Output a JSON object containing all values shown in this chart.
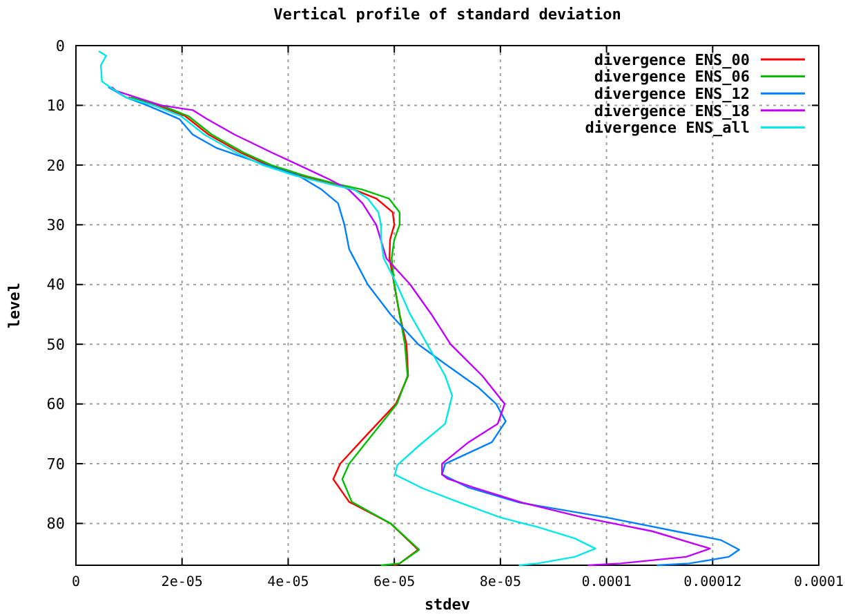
{
  "chart_data": {
    "type": "line",
    "title": "Vertical profile of standard deviation",
    "xlabel": "stdev",
    "ylabel": "level",
    "xlim": [
      0,
      0.00014
    ],
    "xticks": [
      0,
      {
        "value": 2e-05,
        "label": "2e-05"
      },
      {
        "value": 4e-05,
        "label": "4e-05"
      },
      {
        "value": 6e-05,
        "label": "6e-05"
      },
      {
        "value": 8e-05,
        "label": "8e-05"
      },
      {
        "value": 0.0001,
        "label": "0.0001"
      },
      {
        "value": 0.00012,
        "label": "0.00012"
      },
      {
        "value": 0.00014,
        "label": "0.0001"
      }
    ],
    "ylim": [
      87,
      0
    ],
    "yticks": [
      0,
      10,
      20,
      30,
      40,
      50,
      60,
      70,
      80
    ],
    "grid": true,
    "legend": "top right",
    "marker": "none",
    "line_style": "solid",
    "series": [
      {
        "name": "divergence ENS_00",
        "color": "#ff0000",
        "x": [
          1e-05,
          1.54e-05,
          2.06e-05,
          2.5e-05,
          3.1e-05,
          3.62e-05,
          4.25e-05,
          4.92e-05,
          5.24e-05,
          5.66e-05,
          5.97e-05,
          6e-05,
          5.92e-05,
          5.91e-05,
          6e-05,
          6.1e-05,
          6.23e-05,
          6.26e-05,
          6.03e-05,
          5.5e-05,
          4.98e-05,
          4.85e-05,
          5.15e-05,
          5.93e-05,
          6.45e-05,
          6.1e-05,
          6e-05
        ],
        "values": [
          8.7,
          10,
          11.8,
          14.9,
          17.9,
          20,
          21.8,
          23.3,
          24.1,
          25.6,
          27.9,
          30,
          32.5,
          35.6,
          40,
          45,
          50,
          55.3,
          60,
          65,
          70,
          72.6,
          76.4,
          80,
          84.4,
          86.7,
          87
        ]
      },
      {
        "name": "divergence ENS_06",
        "color": "#00c000",
        "x": [
          1.05e-05,
          1.6e-05,
          2.12e-05,
          2.56e-05,
          3.16e-05,
          3.68e-05,
          4.32e-05,
          4.98e-05,
          5.4e-05,
          5.9e-05,
          6.1e-05,
          6.1e-05,
          6e-05,
          5.95e-05,
          6e-05,
          6.1e-05,
          6.2e-05,
          6.25e-05,
          6.05e-05,
          5.6e-05,
          5.15e-05,
          5.02e-05,
          5.2e-05,
          5.93e-05,
          6.47e-05,
          6.1e-05,
          5.76e-05
        ],
        "values": [
          8.7,
          10,
          11.8,
          14.9,
          17.9,
          20,
          21.8,
          23.3,
          24.1,
          25.6,
          27.9,
          30,
          32.5,
          35.6,
          40,
          45,
          50,
          55.3,
          60,
          65,
          70,
          72.6,
          76.4,
          80,
          84.4,
          86.7,
          87
        ]
      },
      {
        "name": "divergence ENS_12",
        "color": "#0080ff",
        "x": [
          6.2e-06,
          9.5e-06,
          1.34e-05,
          1.95e-05,
          2.2e-05,
          2.64e-05,
          3.58e-05,
          4.2e-05,
          4.63e-05,
          4.94e-05,
          5.06e-05,
          5.15e-05,
          5.5e-05,
          5.93e-05,
          6.45e-05,
          6.96e-05,
          7.58e-05,
          7.92e-05,
          8.1e-05,
          7.84e-05,
          6.96e-05,
          6.9e-05,
          7.4e-05,
          8.36e-05,
          0.0001,
          0.000113,
          0.0001216,
          0.000125,
          0.000123,
          0.0001156,
          0.0001096
        ],
        "values": [
          7,
          8.7,
          10,
          12.3,
          14.9,
          17.1,
          20,
          21.8,
          24.1,
          26.4,
          30,
          34.1,
          40,
          45,
          50,
          53.3,
          57.2,
          60,
          62.9,
          66.4,
          70,
          71.8,
          74,
          76.5,
          79,
          81.3,
          82.8,
          84.4,
          85.6,
          86.7,
          87
        ]
      },
      {
        "name": "divergence ENS_18",
        "color": "#c000ff",
        "x": [
          6.8e-06,
          7.6e-06,
          1.6e-05,
          2.2e-05,
          2.47e-05,
          2.99e-05,
          3.69e-05,
          4.2e-05,
          4.8e-05,
          5.14e-05,
          5.4e-05,
          5.66e-05,
          5.85e-05,
          6.3e-05,
          6.7e-05,
          7.06e-05,
          7.66e-05,
          8.08e-05,
          7.95e-05,
          7.4e-05,
          6.9e-05,
          6.9e-05,
          7e-05,
          7.5e-05,
          8.4e-05,
          9.56e-05,
          0.0001086,
          0.0001195,
          0.000115,
          0.0001026,
          9.66e-05
        ],
        "values": [
          7,
          7.6,
          10,
          10.8,
          12.3,
          14.9,
          17.9,
          20,
          22.5,
          24.1,
          26.4,
          30,
          35.6,
          40,
          45,
          50,
          55.3,
          60,
          63.3,
          66.4,
          70,
          71.8,
          72.5,
          74,
          76.5,
          79,
          81.3,
          84.2,
          85.6,
          86.7,
          87
        ]
      },
      {
        "name": "divergence ENS_all",
        "color": "#00e8e8",
        "x": [
          4.4e-06,
          5.7e-06,
          4.7e-06,
          4.9e-06,
          6.5e-06,
          9.5e-06,
          1.46e-05,
          1.98e-05,
          2.42e-05,
          3.02e-05,
          3.52e-05,
          4.14e-05,
          4.83e-05,
          5.24e-05,
          5.5e-05,
          5.7e-05,
          5.75e-05,
          5.75e-05,
          5.8e-05,
          6.05e-05,
          6.3e-05,
          6.62e-05,
          6.96e-05,
          7.09e-05,
          6.96e-05,
          6.45e-05,
          6.06e-05,
          6.01e-05,
          6.53e-05,
          7.2e-05,
          8e-05,
          8.7e-05,
          9.4e-05,
          9.79e-05,
          9.4e-05,
          8.7e-05,
          8.36e-05
        ],
        "values": [
          1,
          1.7,
          3.3,
          6,
          7,
          8.7,
          10,
          11.8,
          14.9,
          17.9,
          20,
          21.8,
          23.3,
          24.1,
          25.6,
          27.9,
          30,
          32.5,
          35.6,
          40,
          45,
          50,
          55.3,
          58.6,
          63.3,
          67.1,
          70.2,
          71.8,
          74.1,
          76.4,
          79,
          80.6,
          82.5,
          84.2,
          85.6,
          86.7,
          87
        ]
      }
    ]
  }
}
